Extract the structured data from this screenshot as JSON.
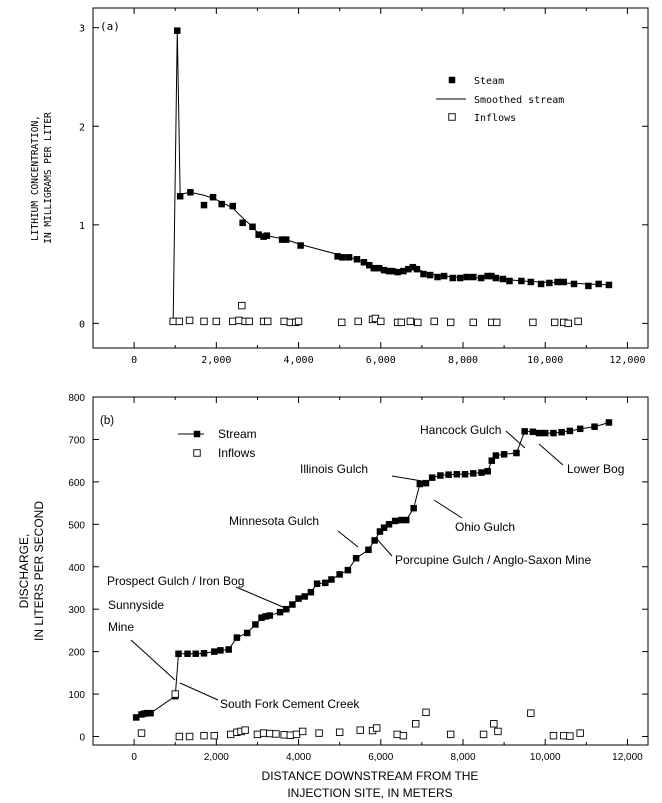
{
  "chart_data": [
    {
      "type": "scatter",
      "panel_label": "(a)",
      "ylabel_lines": [
        "LITHIUM CONCENTRATION,",
        "IN MILLIGRAMS PER LITER"
      ],
      "xlim": [
        -1000,
        12500
      ],
      "ylim": [
        -0.25,
        3.2
      ],
      "xticks": [
        0,
        2000,
        4000,
        6000,
        8000,
        10000,
        12000
      ],
      "xtick_labels": [
        "0",
        "2,000",
        "4,000",
        "6,000",
        "8,000",
        "10,000",
        "12,000"
      ],
      "yticks": [
        0,
        1,
        2,
        3
      ],
      "ytick_labels": [
        "0",
        "1",
        "2",
        "3"
      ],
      "legend": {
        "position": "top-right",
        "entries": [
          "Steam",
          "Smoothed stream",
          "Inflows"
        ]
      },
      "series": [
        {
          "name": "Steam",
          "marker": "filled-square",
          "x": [
            1050,
            1120,
            1370,
            1700,
            1920,
            2130,
            2400,
            2640,
            2880,
            3030,
            3150,
            3230,
            3600,
            3700,
            4050,
            4950,
            5070,
            5230,
            5420,
            5590,
            5720,
            5830,
            5960,
            6080,
            6200,
            6280,
            6410,
            6550,
            6670,
            6780,
            6880,
            7040,
            7200,
            7380,
            7540,
            7750,
            7930,
            8090,
            8250,
            8440,
            8600,
            8690,
            8800,
            8970,
            9130,
            9420,
            9650,
            9900,
            10100,
            10300,
            10450,
            10700,
            11050,
            11300,
            11550
          ],
          "y": [
            2.97,
            1.29,
            1.33,
            1.2,
            1.28,
            1.21,
            1.19,
            1.02,
            0.98,
            0.9,
            0.88,
            0.89,
            0.85,
            0.85,
            0.79,
            0.68,
            0.67,
            0.67,
            0.65,
            0.62,
            0.59,
            0.56,
            0.56,
            0.54,
            0.53,
            0.53,
            0.52,
            0.53,
            0.55,
            0.57,
            0.55,
            0.5,
            0.49,
            0.47,
            0.48,
            0.46,
            0.46,
            0.47,
            0.47,
            0.46,
            0.48,
            0.48,
            0.46,
            0.45,
            0.43,
            0.43,
            0.42,
            0.4,
            0.41,
            0.42,
            0.42,
            0.4,
            0.38,
            0.4,
            0.39
          ]
        },
        {
          "name": "Smoothed stream",
          "marker": "line",
          "x": [
            950,
            1050,
            1120,
            1370,
            1700,
            1920,
            2130,
            2400,
            2640,
            2880,
            3030,
            3230,
            3700,
            4050,
            4950,
            5420,
            5830,
            6080,
            6410,
            6550,
            6780,
            6880,
            7200,
            7750,
            8250,
            8600,
            8970,
            9420,
            9900,
            10450,
            11050,
            11550
          ],
          "y": [
            0.02,
            2.97,
            1.31,
            1.33,
            1.3,
            1.27,
            1.23,
            1.17,
            1.07,
            0.98,
            0.91,
            0.89,
            0.85,
            0.8,
            0.7,
            0.65,
            0.57,
            0.54,
            0.53,
            0.54,
            0.56,
            0.55,
            0.5,
            0.47,
            0.46,
            0.47,
            0.45,
            0.43,
            0.42,
            0.41,
            0.4,
            0.39
          ]
        },
        {
          "name": "Inflows",
          "marker": "open-square",
          "x": [
            950,
            1100,
            1350,
            1700,
            2000,
            2400,
            2550,
            2620,
            2700,
            2800,
            3150,
            3250,
            3650,
            3800,
            3930,
            4000,
            5050,
            5450,
            5800,
            5870,
            6000,
            6410,
            6500,
            6720,
            6900,
            7300,
            7700,
            8250,
            8700,
            8820,
            9700,
            10230,
            10450,
            10560,
            10800
          ],
          "y": [
            0.02,
            0.02,
            0.03,
            0.02,
            0.02,
            0.02,
            0.03,
            0.18,
            0.02,
            0.02,
            0.02,
            0.02,
            0.02,
            0.01,
            0.01,
            0.02,
            0.01,
            0.02,
            0.04,
            0.05,
            0.02,
            0.01,
            0.01,
            0.02,
            0.01,
            0.02,
            0.01,
            0.01,
            0.01,
            0.01,
            0.01,
            0.01,
            0.01,
            0.0,
            0.02
          ]
        }
      ]
    },
    {
      "type": "scatter",
      "panel_label": "(b)",
      "ylabel_lines": [
        "DISCHARGE,",
        "IN LITERS PER SECOND"
      ],
      "xlabel_lines": [
        "DISTANCE DOWNSTREAM FROM THE",
        "INJECTION SITE, IN METERS"
      ],
      "xlim": [
        -1000,
        12500
      ],
      "ylim": [
        -20,
        800
      ],
      "xticks": [
        0,
        2000,
        4000,
        6000,
        8000,
        10000,
        12000
      ],
      "xtick_labels": [
        "0",
        "2,000",
        "4,000",
        "6,000",
        "8,000",
        "10,000",
        "12,000"
      ],
      "yticks": [
        0,
        100,
        200,
        300,
        400,
        500,
        600,
        700,
        800
      ],
      "ytick_labels": [
        "0",
        "100",
        "200",
        "300",
        "400",
        "500",
        "600",
        "700",
        "800"
      ],
      "legend": {
        "position": "top-left",
        "entries": [
          "Stream",
          "Inflows"
        ]
      },
      "series": [
        {
          "name": "Stream",
          "marker": "line-filled-square",
          "x": [
            50,
            180,
            250,
            320,
            400,
            1000,
            1080,
            1300,
            1500,
            1700,
            1950,
            2100,
            2300,
            2500,
            2750,
            2950,
            3100,
            3200,
            3300,
            3550,
            3700,
            3850,
            4000,
            4150,
            4300,
            4450,
            4650,
            4800,
            5000,
            5200,
            5400,
            5700,
            5850,
            5980,
            6080,
            6200,
            6350,
            6500,
            6620,
            6800,
            6950,
            7100,
            7250,
            7450,
            7650,
            7850,
            8050,
            8250,
            8450,
            8600,
            8700,
            8800,
            9000,
            9300,
            9500,
            9700,
            9850,
            10000,
            10200,
            10400,
            10600,
            10850,
            11200,
            11550
          ],
          "y": [
            45,
            52,
            54,
            55,
            55,
            95,
            195,
            195,
            195,
            196,
            200,
            203,
            205,
            233,
            244,
            264,
            280,
            283,
            285,
            293,
            300,
            311,
            325,
            330,
            340,
            360,
            362,
            370,
            382,
            392,
            420,
            440,
            462,
            483,
            492,
            500,
            508,
            510,
            510,
            538,
            595,
            597,
            610,
            615,
            617,
            618,
            618,
            620,
            622,
            625,
            650,
            662,
            665,
            668,
            719,
            718,
            715,
            715,
            715,
            717,
            720,
            725,
            730,
            740
          ]
        },
        {
          "name": "Inflows",
          "marker": "open-square",
          "x": [
            180,
            1000,
            1100,
            1350,
            1700,
            1950,
            2350,
            2500,
            2600,
            2700,
            3000,
            3150,
            3300,
            3450,
            3650,
            3800,
            3950,
            4100,
            4500,
            5000,
            5500,
            5800,
            5900,
            6400,
            6550,
            6850,
            7100,
            7700,
            8500,
            8750,
            8850,
            9650,
            10200,
            10450,
            10600,
            10850
          ],
          "y": [
            8,
            100,
            0,
            0,
            2,
            2,
            5,
            10,
            12,
            15,
            5,
            8,
            7,
            6,
            4,
            3,
            5,
            12,
            8,
            10,
            15,
            14,
            20,
            5,
            2,
            30,
            57,
            5,
            5,
            30,
            12,
            55,
            2,
            2,
            1,
            8
          ]
        }
      ],
      "annotations": [
        {
          "text_lines": [
            "Sunnyside",
            "Mine"
          ],
          "x": 1000,
          "y": 100
        },
        {
          "text_lines": [
            "South Fork Cement Creek"
          ],
          "x": 1000,
          "y": 100
        },
        {
          "text_lines": [
            "Prospect Gulch / Iron Bog"
          ],
          "x": 3150,
          "y": 280
        },
        {
          "text_lines": [
            "Minnesota Gulch"
          ],
          "x": 5850,
          "y": 420
        },
        {
          "text_lines": [
            "Porcupine Gulch / Anglo-Saxon Mine"
          ],
          "x": 6080,
          "y": 492
        },
        {
          "text_lines": [
            "Illinois Gulch"
          ],
          "x": 6950,
          "y": 595
        },
        {
          "text_lines": [
            "Ohio Gulch"
          ],
          "x": 6800,
          "y": 538
        },
        {
          "text_lines": [
            "Hancock Gulch"
          ],
          "x": 8700,
          "y": 650
        },
        {
          "text_lines": [
            "Lower Bog"
          ],
          "x": 9500,
          "y": 719
        }
      ]
    }
  ]
}
